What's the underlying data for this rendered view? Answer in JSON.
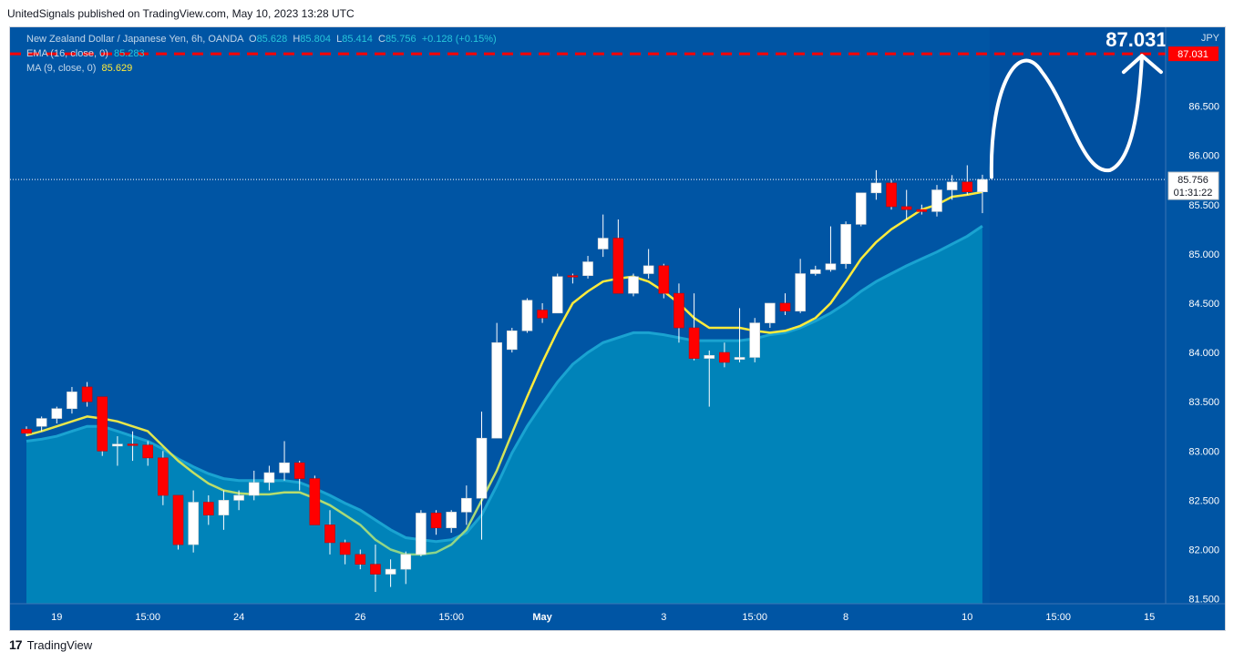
{
  "header": {
    "published": "UnitedSignals published on TradingView.com, May 10, 2023 13:28 UTC"
  },
  "footer": {
    "brand": "TradingView",
    "logo_glyph": "17"
  },
  "legend": {
    "title": "New Zealand Dollar / Japanese Yen, 6h, OANDA",
    "o_label": "O",
    "o_value": "85.628",
    "h_label": "H",
    "h_value": "85.804",
    "l_label": "L",
    "l_value": "85.414",
    "c_label": "C",
    "c_value": "85.756",
    "change": "+0.128 (+0.15%)",
    "ema_label": "EMA (16, close, 0)",
    "ema_value": "85.283",
    "ma_label": "MA (9, close, 0)",
    "ma_value": "85.629"
  },
  "colors": {
    "background": "#0055a4",
    "up": "#ffffff",
    "down": "#ff0000",
    "ema_fill": "#0088bb",
    "ma_line": "#ffeb3b",
    "ma_line_low": "#8bd48b",
    "target": "#ff0000",
    "axis_text": "#ffffff"
  },
  "chart_data": {
    "type": "candlestick",
    "title": "New Zealand Dollar / Japanese Yen, 6h, OANDA",
    "currency": "JPY",
    "ylim": [
      81.45,
      87.3
    ],
    "y_ticks": [
      "81.500",
      "82.000",
      "82.500",
      "83.000",
      "83.500",
      "84.000",
      "84.500",
      "85.000",
      "85.500",
      "86.000",
      "86.500"
    ],
    "x_ticks": [
      {
        "label": "19",
        "bar": 2
      },
      {
        "label": "15:00",
        "bar": 8
      },
      {
        "label": "24",
        "bar": 14
      },
      {
        "label": "26",
        "bar": 22
      },
      {
        "label": "15:00",
        "bar": 28
      },
      {
        "label": "May",
        "bar": 34
      },
      {
        "label": "3",
        "bar": 42
      },
      {
        "label": "15:00",
        "bar": 48
      },
      {
        "label": "8",
        "bar": 54
      },
      {
        "label": "10",
        "bar": 62
      },
      {
        "label": "15:00",
        "bar": 68
      },
      {
        "label": "15",
        "bar": 74
      }
    ],
    "candles": [
      [
        83.22,
        83.25,
        83.15,
        83.18
      ],
      [
        83.25,
        83.35,
        83.2,
        83.33
      ],
      [
        83.33,
        83.45,
        83.28,
        83.43
      ],
      [
        83.43,
        83.65,
        83.38,
        83.6
      ],
      [
        83.65,
        83.7,
        83.45,
        83.5
      ],
      [
        83.55,
        83.55,
        82.95,
        83.0
      ],
      [
        83.05,
        83.15,
        82.85,
        83.07
      ],
      [
        83.07,
        83.2,
        82.9,
        83.06
      ],
      [
        83.06,
        83.1,
        82.85,
        82.93
      ],
      [
        82.93,
        83.0,
        82.45,
        82.55
      ],
      [
        82.55,
        82.55,
        82.0,
        82.05
      ],
      [
        82.05,
        82.6,
        81.97,
        82.48
      ],
      [
        82.48,
        82.55,
        82.25,
        82.35
      ],
      [
        82.35,
        82.6,
        82.2,
        82.5
      ],
      [
        82.5,
        82.6,
        82.4,
        82.55
      ],
      [
        82.55,
        82.8,
        82.5,
        82.68
      ],
      [
        82.68,
        82.85,
        82.6,
        82.78
      ],
      [
        82.78,
        83.1,
        82.7,
        82.88
      ],
      [
        82.88,
        82.9,
        82.6,
        82.72
      ],
      [
        82.72,
        82.75,
        82.25,
        82.25
      ],
      [
        82.25,
        82.4,
        81.95,
        82.07
      ],
      [
        82.07,
        82.1,
        81.85,
        81.95
      ],
      [
        81.95,
        82.0,
        81.8,
        81.85
      ],
      [
        81.85,
        82.05,
        81.57,
        81.75
      ],
      [
        81.75,
        81.9,
        81.62,
        81.8
      ],
      [
        81.8,
        81.98,
        81.65,
        81.95
      ],
      [
        81.95,
        82.4,
        81.93,
        82.37
      ],
      [
        82.37,
        82.4,
        82.15,
        82.22
      ],
      [
        82.22,
        82.4,
        82.17,
        82.38
      ],
      [
        82.38,
        82.65,
        82.25,
        82.52
      ],
      [
        82.52,
        83.4,
        82.1,
        83.13
      ],
      [
        83.13,
        84.3,
        83.13,
        84.1
      ],
      [
        84.03,
        84.25,
        84.0,
        84.22
      ],
      [
        84.22,
        84.55,
        84.2,
        84.53
      ],
      [
        84.43,
        84.5,
        84.3,
        84.35
      ],
      [
        84.4,
        84.8,
        84.4,
        84.77
      ],
      [
        84.78,
        84.8,
        84.7,
        84.77
      ],
      [
        84.78,
        84.98,
        84.75,
        84.92
      ],
      [
        85.05,
        85.4,
        84.97,
        85.16
      ],
      [
        85.16,
        85.35,
        84.6,
        84.6
      ],
      [
        84.6,
        84.8,
        84.57,
        84.77
      ],
      [
        84.8,
        85.05,
        84.75,
        84.88
      ],
      [
        84.88,
        84.9,
        84.55,
        84.6
      ],
      [
        84.6,
        84.7,
        84.1,
        84.25
      ],
      [
        84.25,
        84.6,
        83.92,
        83.94
      ],
      [
        83.94,
        84.02,
        83.45,
        83.97
      ],
      [
        84.0,
        84.1,
        83.85,
        83.9
      ],
      [
        83.93,
        84.45,
        83.9,
        83.95
      ],
      [
        83.95,
        84.35,
        83.9,
        84.3
      ],
      [
        84.3,
        84.5,
        84.25,
        84.5
      ],
      [
        84.5,
        84.6,
        84.38,
        84.42
      ],
      [
        84.42,
        84.95,
        84.4,
        84.8
      ],
      [
        84.8,
        84.88,
        84.78,
        84.84
      ],
      [
        84.84,
        85.28,
        84.82,
        84.9
      ],
      [
        84.9,
        85.33,
        84.85,
        85.3
      ],
      [
        85.3,
        85.62,
        85.28,
        85.62
      ],
      [
        85.62,
        85.85,
        85.55,
        85.72
      ],
      [
        85.72,
        85.75,
        85.45,
        85.48
      ],
      [
        85.48,
        85.65,
        85.35,
        85.45
      ],
      [
        85.45,
        85.5,
        85.4,
        85.43
      ],
      [
        85.43,
        85.7,
        85.38,
        85.65
      ],
      [
        85.65,
        85.8,
        85.55,
        85.73
      ],
      [
        85.73,
        85.9,
        85.6,
        85.63
      ],
      [
        85.63,
        85.804,
        85.414,
        85.756
      ]
    ],
    "ema_16": [
      83.1,
      83.12,
      83.15,
      83.2,
      83.25,
      83.25,
      83.2,
      83.15,
      83.1,
      83.02,
      82.92,
      82.84,
      82.77,
      82.72,
      82.7,
      82.7,
      82.7,
      82.7,
      82.68,
      82.62,
      82.55,
      82.47,
      82.4,
      82.3,
      82.2,
      82.12,
      82.1,
      82.08,
      82.1,
      82.17,
      82.35,
      82.65,
      82.98,
      83.25,
      83.48,
      83.7,
      83.88,
      84.0,
      84.1,
      84.15,
      84.2,
      84.2,
      84.18,
      84.15,
      84.12,
      84.12,
      84.12,
      84.12,
      84.14,
      84.18,
      84.2,
      84.25,
      84.32,
      84.4,
      84.5,
      84.62,
      84.72,
      84.8,
      84.88,
      84.95,
      85.02,
      85.1,
      85.18,
      85.283
    ],
    "ma_9": [
      83.16,
      83.2,
      83.25,
      83.3,
      83.35,
      83.33,
      83.3,
      83.25,
      83.2,
      83.05,
      82.9,
      82.78,
      82.67,
      82.6,
      82.57,
      82.56,
      82.56,
      82.58,
      82.58,
      82.52,
      82.45,
      82.35,
      82.25,
      82.1,
      82.0,
      81.95,
      81.95,
      81.97,
      82.05,
      82.2,
      82.5,
      82.8,
      83.18,
      83.55,
      83.9,
      84.22,
      84.5,
      84.62,
      84.72,
      84.75,
      84.77,
      84.72,
      84.62,
      84.5,
      84.35,
      84.25,
      84.25,
      84.25,
      84.22,
      84.2,
      84.22,
      84.27,
      84.35,
      84.5,
      84.72,
      84.95,
      85.12,
      85.25,
      85.35,
      85.45,
      85.5,
      85.58,
      85.6,
      85.629
    ],
    "current_price": "85.756",
    "countdown": "01:31:22",
    "target": "87.031",
    "target_value": 87.031,
    "projection": "arrow up then down then up to target"
  }
}
